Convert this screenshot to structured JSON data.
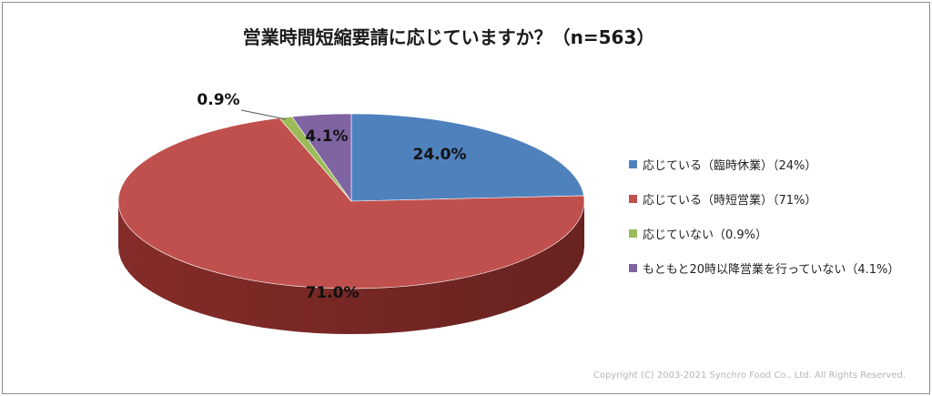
{
  "chart_data": {
    "type": "pie",
    "title": "営業時間短縮要請に応じていますか？（n=563）",
    "categories": [
      "応じている（臨時休業）（24%）",
      "応じている（時短営業）（71%）",
      "応じていない（0.9%）",
      "もともと20時以降営業を行っていない（4.1%）"
    ],
    "values": [
      24.0,
      71.0,
      0.9,
      4.1
    ],
    "data_labels": [
      "24.0%",
      "71.0%",
      "0.9%",
      "4.1%"
    ],
    "colors": [
      "#4f81bd",
      "#c0504d",
      "#9bbb59",
      "#8064a2"
    ],
    "side_colors": [
      "#2f5480",
      "#8b2e2b",
      "#6a8a35",
      "#54406e"
    ],
    "three_d": true,
    "legend_position": "right"
  },
  "footer": {
    "copyright": "Copyright (C) 2003-2021   Synchro Food Co., Ltd. All Rights Reserved."
  }
}
